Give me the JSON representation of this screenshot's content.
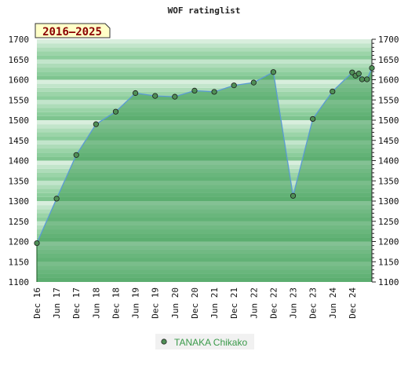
{
  "chart_data": {
    "type": "area",
    "title": "WOF ratinglist",
    "period_badge": "2016–2025",
    "ylim": [
      1100,
      1700
    ],
    "y_ticks": [
      1100,
      1150,
      1200,
      1250,
      1300,
      1350,
      1400,
      1450,
      1500,
      1550,
      1600,
      1650,
      1700
    ],
    "x_ticks": [
      {
        "label": "Dec 16",
        "t": 0
      },
      {
        "label": "Jun 17",
        "t": 6
      },
      {
        "label": "Dec 17",
        "t": 12
      },
      {
        "label": "Jun 18",
        "t": 18
      },
      {
        "label": "Dec 18",
        "t": 24
      },
      {
        "label": "Jun 19",
        "t": 30
      },
      {
        "label": "Dec 19",
        "t": 36
      },
      {
        "label": "Jun 20",
        "t": 42
      },
      {
        "label": "Dec 20",
        "t": 48
      },
      {
        "label": "Jun 21",
        "t": 54
      },
      {
        "label": "Dec 21",
        "t": 60
      },
      {
        "label": "Jun 22",
        "t": 66
      },
      {
        "label": "Dec 22",
        "t": 72
      },
      {
        "label": "Jun 23",
        "t": 78
      },
      {
        "label": "Dec 23",
        "t": 84
      },
      {
        "label": "Jun 24",
        "t": 90
      },
      {
        "label": "Dec 24",
        "t": 96
      }
    ],
    "x_range": [
      0,
      102
    ],
    "series": [
      {
        "name": "TANAKA Chikako",
        "color": "#4f8f56",
        "line_color": "#5b9bd5",
        "points": [
          {
            "t": 0,
            "y": 1196
          },
          {
            "t": 6,
            "y": 1306
          },
          {
            "t": 12,
            "y": 1414
          },
          {
            "t": 18,
            "y": 1490
          },
          {
            "t": 24,
            "y": 1521
          },
          {
            "t": 30,
            "y": 1567
          },
          {
            "t": 36,
            "y": 1560
          },
          {
            "t": 42,
            "y": 1558
          },
          {
            "t": 48,
            "y": 1573
          },
          {
            "t": 54,
            "y": 1570
          },
          {
            "t": 60,
            "y": 1586
          },
          {
            "t": 66,
            "y": 1593
          },
          {
            "t": 72,
            "y": 1619
          },
          {
            "t": 78,
            "y": 1313
          },
          {
            "t": 84,
            "y": 1503
          },
          {
            "t": 90,
            "y": 1571
          },
          {
            "t": 96,
            "y": 1618
          },
          {
            "t": 97,
            "y": 1610
          },
          {
            "t": 98,
            "y": 1615
          },
          {
            "t": 99,
            "y": 1601
          },
          {
            "t": 100.5,
            "y": 1601
          },
          {
            "t": 102,
            "y": 1629
          }
        ]
      }
    ],
    "band_colors": [
      "#7ec48f",
      "#8ccd9c",
      "#9bd4a8",
      "#aedcb9",
      "#c2e5cb",
      "#d8eedd",
      "#eaf6ed"
    ],
    "legend": {
      "label": "TANAKA Chikako"
    }
  }
}
